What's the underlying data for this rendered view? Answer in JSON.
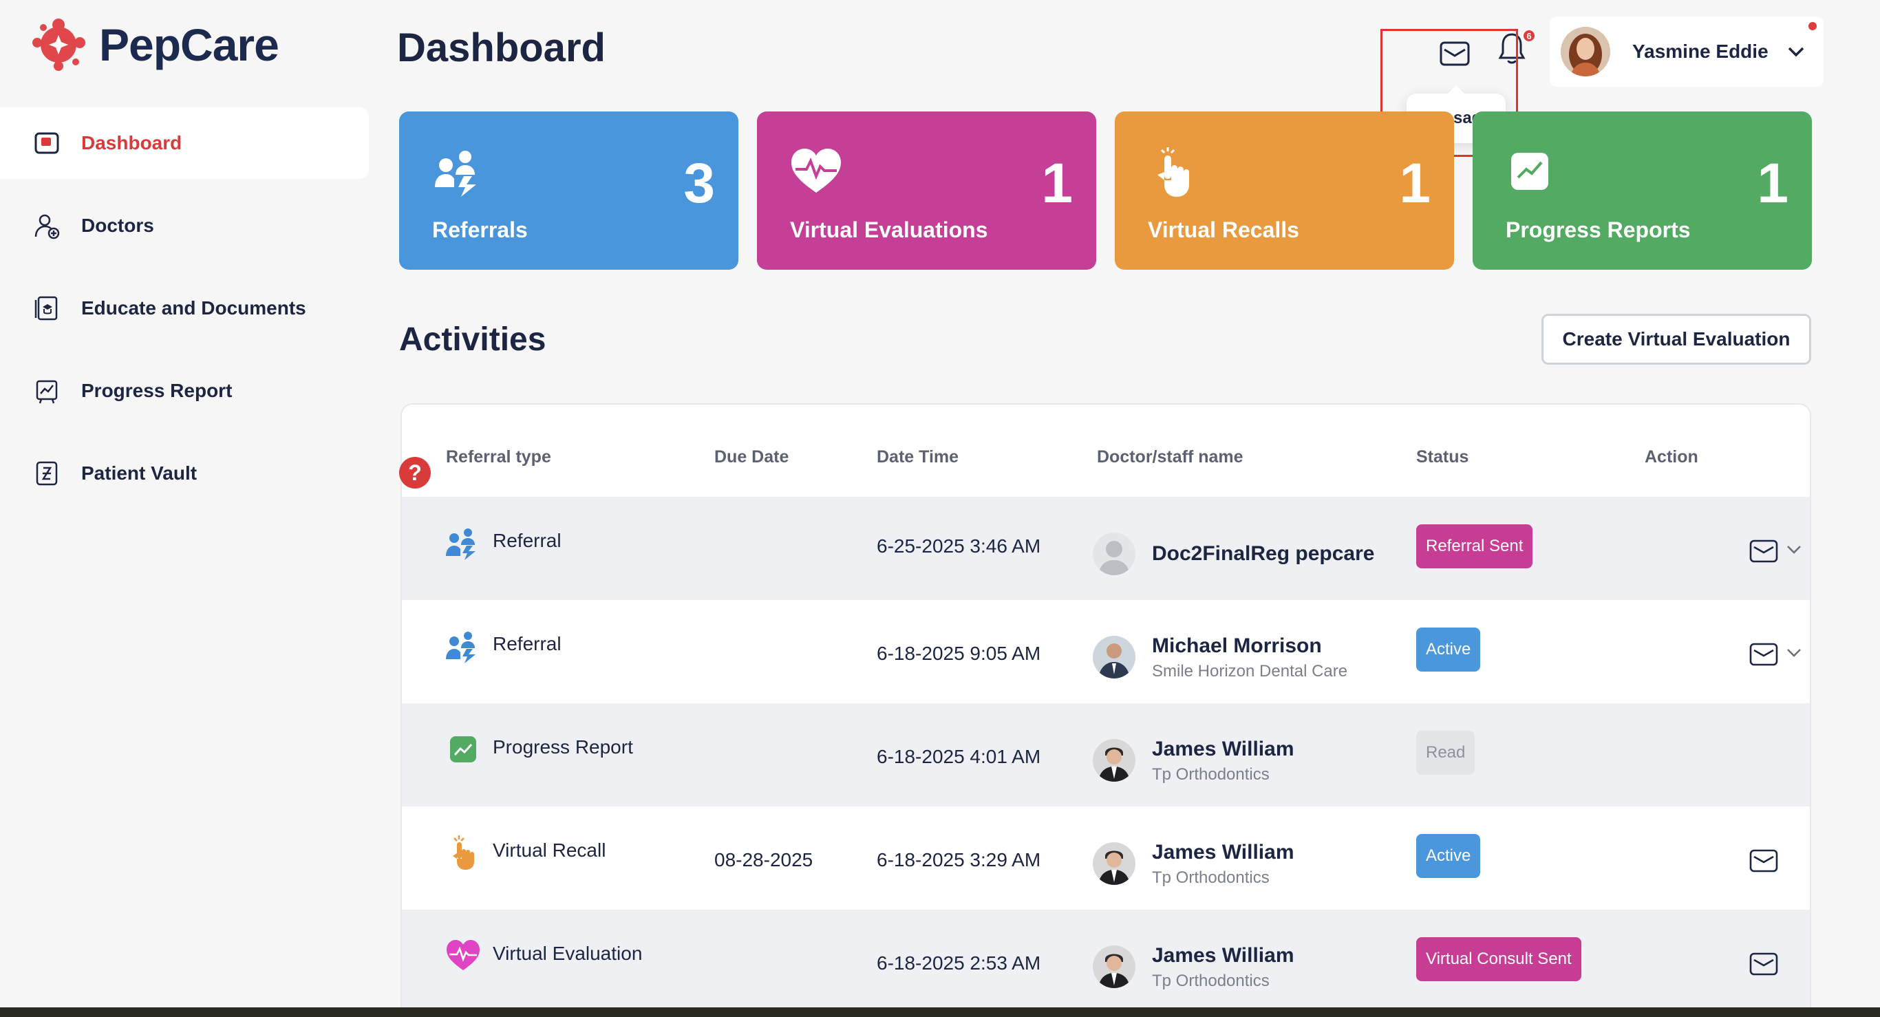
{
  "app": {
    "name": "PepCare"
  },
  "header": {
    "title": "Dashboard",
    "tooltip": "Message",
    "bell_badge": "6"
  },
  "user": {
    "name": "Yasmine Eddie"
  },
  "sidebar": {
    "items": [
      {
        "label": "Dashboard",
        "icon": "dashboard-icon",
        "active": true
      },
      {
        "label": "Doctors",
        "icon": "doctor-add-icon"
      },
      {
        "label": "Educate and Documents",
        "icon": "document-icon"
      },
      {
        "label": "Progress Report",
        "icon": "progress-report-icon"
      },
      {
        "label": "Patient Vault",
        "icon": "vault-icon"
      }
    ]
  },
  "stats": [
    {
      "label": "Referrals",
      "count": "3",
      "color": "#4a96dc",
      "icon": "referral-icon"
    },
    {
      "label": "Virtual Evaluations",
      "count": "1",
      "color": "#c53f96",
      "icon": "heart-pulse-icon"
    },
    {
      "label": "Virtual Recalls",
      "count": "1",
      "color": "#e99a3f",
      "icon": "hand-icon"
    },
    {
      "label": "Progress Reports",
      "count": "1",
      "color": "#53aa62",
      "icon": "chart-icon"
    }
  ],
  "activities": {
    "title": "Activities",
    "create_button": "Create Virtual Evaluation",
    "columns": [
      "Referral type",
      "Due Date",
      "Date Time",
      "Doctor/staff name",
      "Status",
      "Action"
    ],
    "rows": [
      {
        "type": "Referral",
        "icon": "referral-icon",
        "due": "",
        "datetime": "6-25-2025 3:46 AM",
        "doctor": "Doc2FinalReg pepcare",
        "org": "",
        "status": "Referral Sent",
        "status_color": "#c73d94",
        "expand": true
      },
      {
        "type": "Referral",
        "icon": "referral-icon",
        "due": "",
        "datetime": "6-18-2025 9:05 AM",
        "doctor": "Michael Morrison",
        "org": "Smile Horizon Dental Care",
        "status": "Active",
        "status_color": "#4b97de",
        "expand": true
      },
      {
        "type": "Progress Report",
        "icon": "chart-icon",
        "due": "",
        "datetime": "6-18-2025 4:01 AM",
        "doctor": "James William",
        "org": "Tp Orthodontics",
        "status": "Read",
        "status_color": "#e3e4e7",
        "expand": false
      },
      {
        "type": "Virtual Recall",
        "icon": "hand-icon",
        "due": "08-28-2025",
        "datetime": "6-18-2025 3:29 AM",
        "doctor": "James William",
        "org": "Tp Orthodontics",
        "status": "Active",
        "status_color": "#4b97de",
        "expand": false
      },
      {
        "type": "Virtual Evaluation",
        "icon": "heart-pulse-icon",
        "due": "",
        "datetime": "6-18-2025 2:53 AM",
        "doctor": "James William",
        "org": "Tp Orthodontics",
        "status": "Virtual Consult Sent",
        "status_color": "#c73d94",
        "expand": false
      }
    ]
  }
}
